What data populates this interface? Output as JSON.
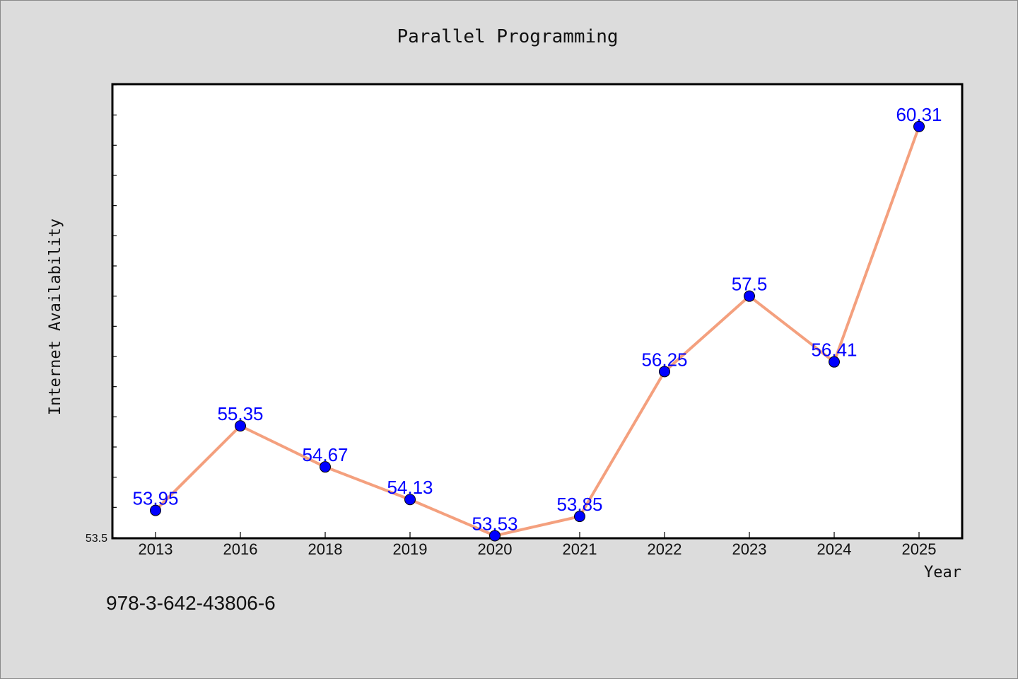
{
  "chart_data": {
    "type": "line",
    "title": "Parallel Programming",
    "xlabel": "Year",
    "ylabel": "Internet Availability",
    "categories": [
      "2013",
      "2016",
      "2018",
      "2019",
      "2020",
      "2021",
      "2022",
      "2023",
      "2024",
      "2025"
    ],
    "values": [
      53.95,
      55.35,
      54.67,
      54.13,
      53.53,
      53.85,
      56.25,
      57.5,
      56.41,
      60.31
    ],
    "data_labels": [
      "53.95",
      "55.35",
      "54.67",
      "54.13",
      "53.53",
      "53.85",
      "56.25",
      "57.5",
      "56.41",
      "60.31"
    ],
    "ylim": [
      53.5,
      61.0
    ],
    "y_tick_label": "53.5",
    "grid": false,
    "line_color": "#f4a07e",
    "marker_color": "#0000ff"
  },
  "caption": "978-3-642-43806-6"
}
